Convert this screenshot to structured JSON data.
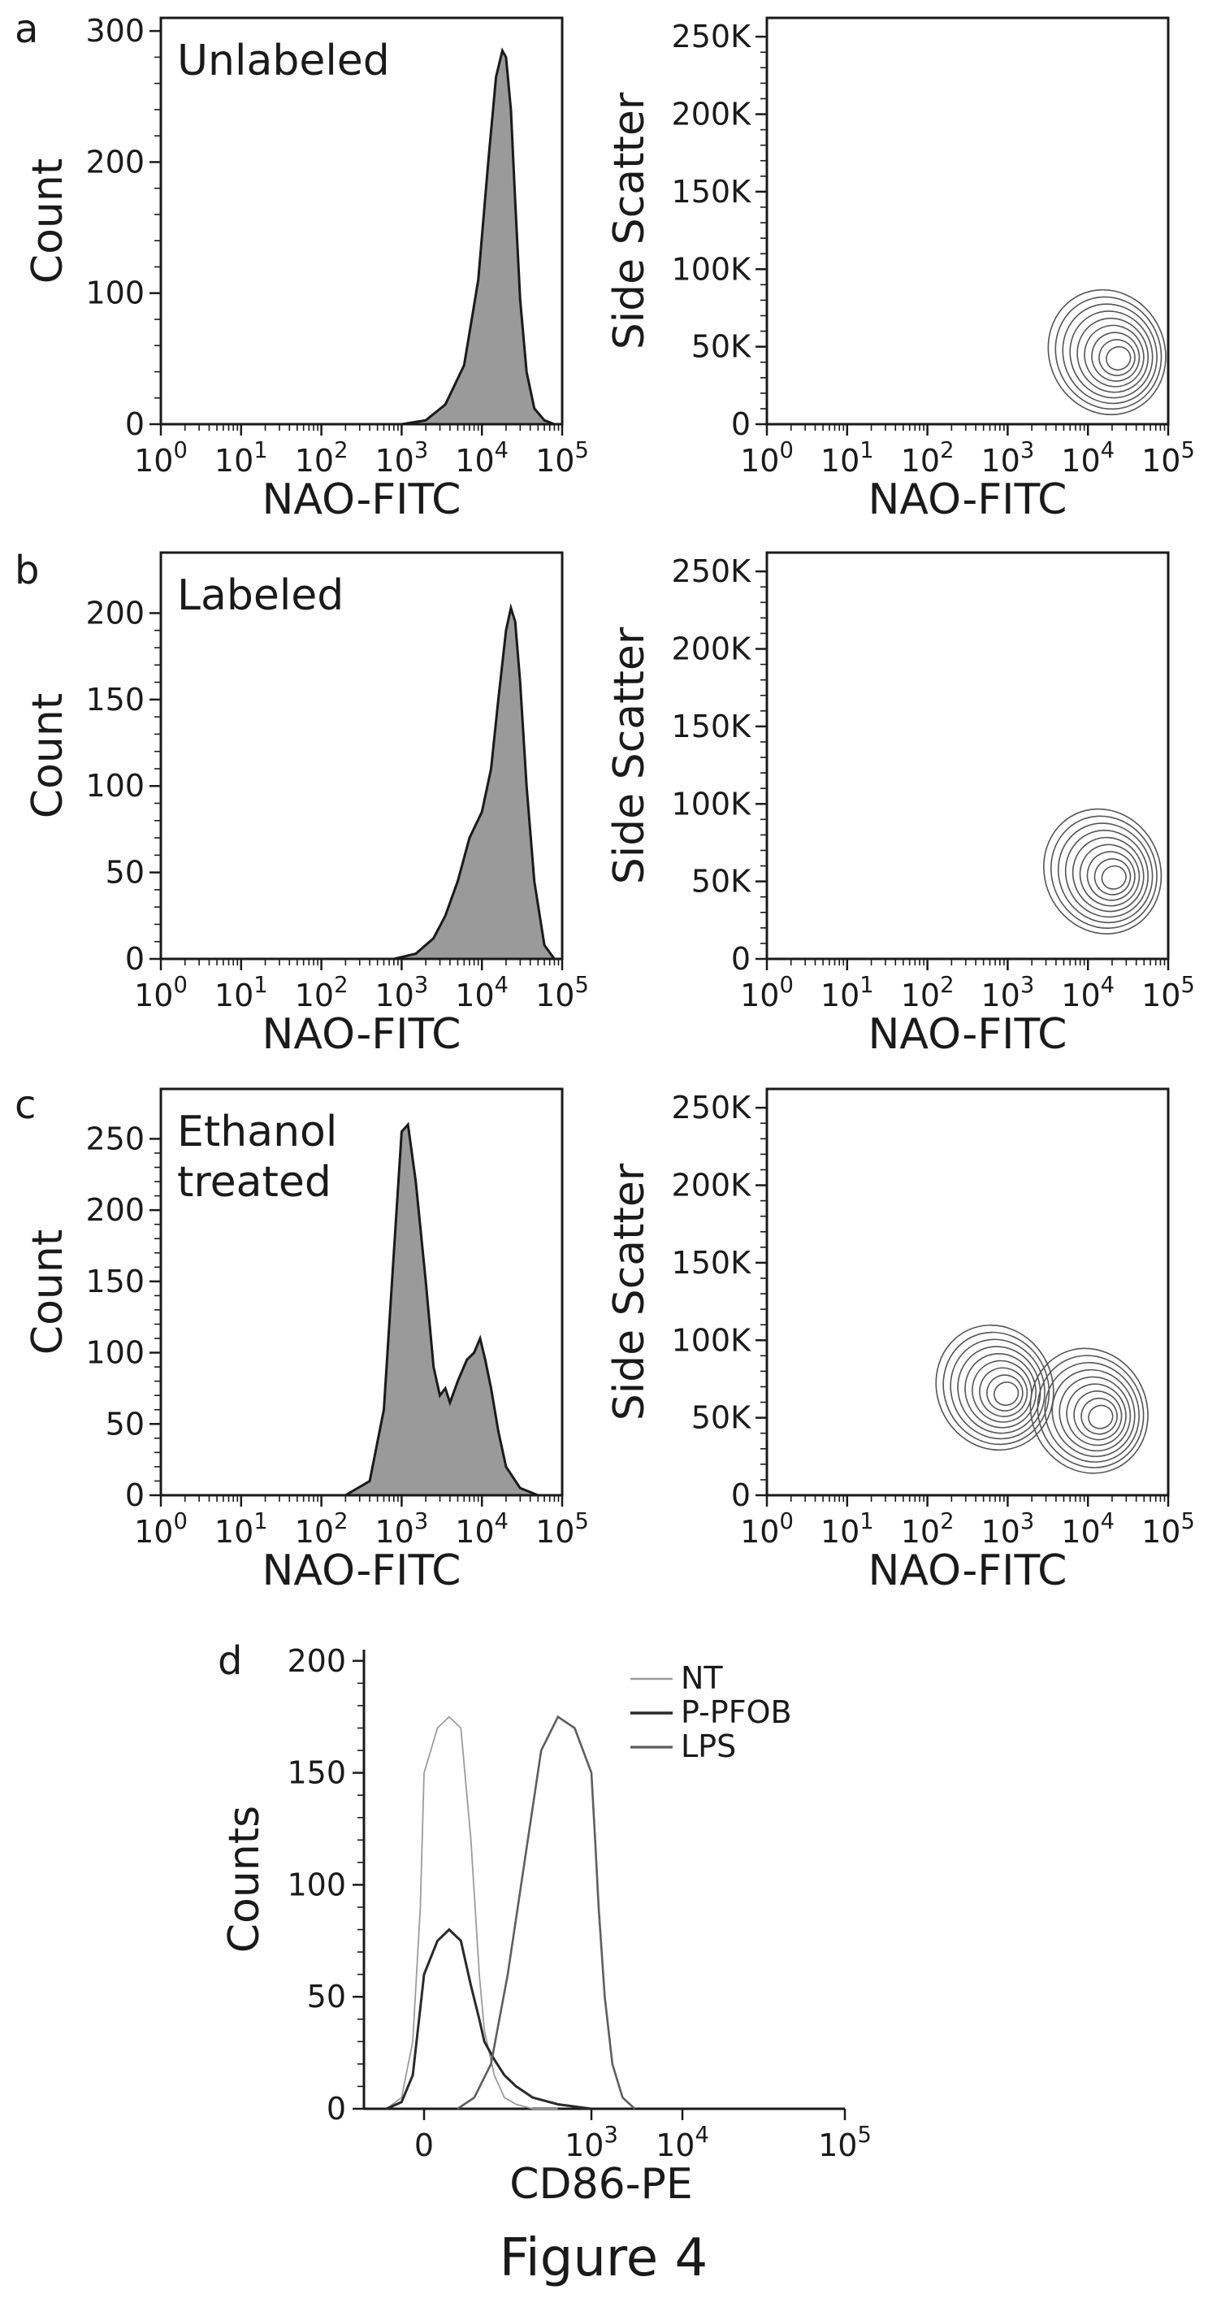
{
  "figure_caption": "Figure 4",
  "panel_letters": [
    "a",
    "b",
    "c",
    "d"
  ],
  "colors": {
    "hist_fill": "#9a9a9a",
    "line_dark": "#1a1a1a",
    "nt": "#9c9c9c",
    "ppfob": "#2a2a2a",
    "lps": "#5e5e5e"
  },
  "chart_data": [
    {
      "id": "a-hist",
      "type": "area",
      "panel": "a",
      "title": "Unlabeled",
      "xlabel": "NAO-FITC",
      "ylabel": "Count",
      "xscale": "log",
      "xticks": [
        "10^0",
        "10^1",
        "10^2",
        "10^3",
        "10^4",
        "10^5"
      ],
      "yticks": [
        0,
        100,
        200,
        300
      ],
      "xlim": [
        1,
        100000
      ],
      "ylim": [
        0,
        310
      ],
      "x": [
        1000,
        2000,
        3500,
        6000,
        9000,
        12000,
        15000,
        18000,
        20000,
        23000,
        26000,
        30000,
        36000,
        45000,
        60000,
        80000
      ],
      "y": [
        0,
        3,
        15,
        45,
        110,
        200,
        265,
        285,
        280,
        240,
        170,
        95,
        40,
        12,
        3,
        0
      ]
    },
    {
      "id": "a-contour",
      "type": "scatter",
      "panel": "a",
      "xlabel": "NAO-FITC",
      "ylabel": "Side Scatter",
      "xscale": "log",
      "xticks": [
        "10^0",
        "10^1",
        "10^2",
        "10^3",
        "10^4",
        "10^5"
      ],
      "yticks": [
        "0",
        "50K",
        "100K",
        "150K",
        "200K",
        "250K"
      ],
      "xlim": [
        1,
        100000
      ],
      "ylim": [
        0,
        262144
      ],
      "center": {
        "x": 25000,
        "y": 42000
      }
    },
    {
      "id": "b-hist",
      "type": "area",
      "panel": "b",
      "title": "Labeled",
      "xlabel": "NAO-FITC",
      "ylabel": "Count",
      "xscale": "log",
      "xticks": [
        "10^0",
        "10^1",
        "10^2",
        "10^3",
        "10^4",
        "10^5"
      ],
      "yticks": [
        0,
        50,
        100,
        150,
        200
      ],
      "xlim": [
        1,
        100000
      ],
      "ylim": [
        0,
        235
      ],
      "x": [
        800,
        1500,
        2500,
        3500,
        5000,
        7000,
        10000,
        13000,
        16000,
        20000,
        23000,
        26000,
        30000,
        36000,
        45000,
        60000,
        80000
      ],
      "y": [
        0,
        3,
        12,
        25,
        45,
        70,
        85,
        110,
        150,
        190,
        203,
        195,
        160,
        100,
        45,
        8,
        0
      ]
    },
    {
      "id": "b-contour",
      "type": "scatter",
      "panel": "b",
      "xlabel": "NAO-FITC",
      "ylabel": "Side Scatter",
      "xscale": "log",
      "xticks": [
        "10^0",
        "10^1",
        "10^2",
        "10^3",
        "10^4",
        "10^5"
      ],
      "yticks": [
        "0",
        "50K",
        "100K",
        "150K",
        "200K",
        "250K"
      ],
      "xlim": [
        1,
        100000
      ],
      "ylim": [
        0,
        262144
      ],
      "center": {
        "x": 22000,
        "y": 52000
      }
    },
    {
      "id": "c-hist",
      "type": "area",
      "panel": "c",
      "title": "Ethanol treated",
      "xlabel": "NAO-FITC",
      "ylabel": "Count",
      "xscale": "log",
      "xticks": [
        "10^0",
        "10^1",
        "10^2",
        "10^3",
        "10^4",
        "10^5"
      ],
      "yticks": [
        0,
        50,
        100,
        150,
        200,
        250
      ],
      "xlim": [
        1,
        100000
      ],
      "ylim": [
        0,
        285
      ],
      "x": [
        200,
        400,
        600,
        800,
        1000,
        1200,
        1500,
        2000,
        2500,
        3000,
        3500,
        4000,
        5000,
        6500,
        8000,
        9500,
        11000,
        13000,
        16000,
        20000,
        30000,
        50000
      ],
      "y": [
        0,
        10,
        60,
        170,
        255,
        260,
        220,
        150,
        90,
        70,
        75,
        65,
        80,
        95,
        100,
        110,
        95,
        75,
        45,
        20,
        5,
        0
      ]
    },
    {
      "id": "c-contour",
      "type": "scatter",
      "panel": "c",
      "xlabel": "NAO-FITC",
      "ylabel": "Side Scatter",
      "xscale": "log",
      "xticks": [
        "10^0",
        "10^1",
        "10^2",
        "10^3",
        "10^4",
        "10^5"
      ],
      "yticks": [
        "0",
        "50K",
        "100K",
        "150K",
        "200K",
        "250K"
      ],
      "xlim": [
        1,
        100000
      ],
      "ylim": [
        0,
        262144
      ],
      "centers": [
        {
          "x": 1000,
          "y": 65000
        },
        {
          "x": 15000,
          "y": 50000
        }
      ]
    },
    {
      "id": "d-hist",
      "type": "line",
      "panel": "d",
      "xlabel": "CD86-PE",
      "ylabel": "Counts",
      "xscale": "biexponential",
      "xticks": [
        "0",
        "10^3",
        "10^4",
        "10^5"
      ],
      "yticks": [
        0,
        50,
        100,
        150,
        200
      ],
      "ylim": [
        0,
        205
      ],
      "legend_position": "top-right",
      "series": [
        {
          "name": "NT",
          "x": [
            -500,
            -300,
            -150,
            -50,
            0,
            80,
            150,
            220,
            280,
            330,
            360,
            420,
            480,
            550,
            650,
            800
          ],
          "y": [
            0,
            5,
            30,
            90,
            150,
            170,
            175,
            170,
            120,
            60,
            35,
            15,
            5,
            2,
            0,
            0
          ]
        },
        {
          "name": "P-PFOB",
          "x": [
            -500,
            -300,
            -150,
            -50,
            0,
            80,
            150,
            220,
            280,
            330,
            360,
            420,
            480,
            550,
            650,
            800,
            1000
          ],
          "y": [
            0,
            3,
            15,
            45,
            60,
            75,
            80,
            75,
            55,
            40,
            30,
            22,
            15,
            10,
            5,
            2,
            0
          ]
        },
        {
          "name": "LPS",
          "x": [
            200,
            300,
            400,
            500,
            600,
            700,
            800,
            900,
            1000,
            1100,
            1200,
            1400,
            1700,
            2200,
            3000
          ],
          "y": [
            0,
            5,
            20,
            60,
            110,
            160,
            175,
            170,
            150,
            120,
            90,
            50,
            20,
            5,
            0
          ]
        }
      ]
    }
  ]
}
